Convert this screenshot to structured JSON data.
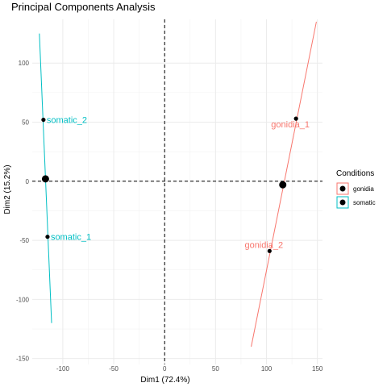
{
  "chart_data": {
    "type": "scatter",
    "title": "Principal Components Analysis",
    "xlabel": "Dim1 (72.4%)",
    "ylabel": "Dim2 (15.2%)",
    "xlim": [
      -130,
      155
    ],
    "ylim": [
      -155,
      137
    ],
    "xticks": [
      -100,
      -50,
      0,
      50,
      100,
      150
    ],
    "yticks": [
      100,
      50,
      0,
      -50,
      -100,
      -150
    ],
    "xtick_labels": [
      "-100",
      "-50",
      "0",
      "50",
      "100",
      "150"
    ],
    "ytick_labels": [
      "100",
      "50",
      "0",
      "-50",
      "-100",
      "-150"
    ],
    "grid": true,
    "reference_lines": {
      "x": 0,
      "y": 0
    },
    "legend": {
      "title": "Conditions",
      "position": "right",
      "entries": [
        {
          "label": "gonidia",
          "color": "#F8766D"
        },
        {
          "label": "somatic",
          "color": "#00BFC4"
        }
      ]
    },
    "series": [
      {
        "name": "gonidia",
        "color": "#F8766D",
        "points": [
          {
            "label": "gonidia_1",
            "x": 129,
            "y": 53
          },
          {
            "label": "gonidia_2",
            "x": 103,
            "y": -59
          }
        ],
        "centroid": {
          "x": 116,
          "y": -3
        },
        "axis_line": {
          "x1": 85,
          "y1": -140,
          "x2": 149,
          "y2": 135
        }
      },
      {
        "name": "somatic",
        "color": "#00BFC4",
        "points": [
          {
            "label": "somatic_2",
            "x": -119,
            "y": 52
          },
          {
            "label": "somatic_1",
            "x": -115,
            "y": -47
          }
        ],
        "centroid": {
          "x": -117,
          "y": 2
        },
        "axis_line": {
          "x1": -123,
          "y1": 125,
          "x2": -111,
          "y2": -120
        }
      }
    ]
  }
}
